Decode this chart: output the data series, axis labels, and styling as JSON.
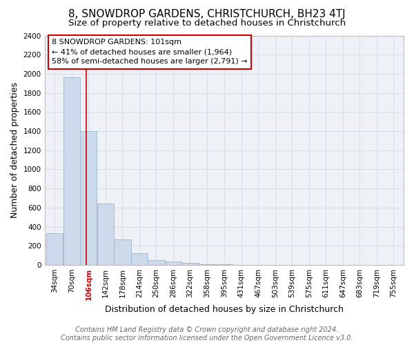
{
  "title": "8, SNOWDROP GARDENS, CHRISTCHURCH, BH23 4TJ",
  "subtitle": "Size of property relative to detached houses in Christchurch",
  "xlabel": "Distribution of detached houses by size in Christchurch",
  "ylabel": "Number of detached properties",
  "footer_line1": "Contains HM Land Registry data © Crown copyright and database right 2024.",
  "footer_line2": "Contains public sector information licensed under the Open Government Licence v3.0.",
  "annotation_line1": "8 SNOWDROP GARDENS: 101sqm",
  "annotation_line2": "← 41% of detached houses are smaller (1,964)",
  "annotation_line3": "58% of semi-detached houses are larger (2,791) →",
  "bar_color": "#ccdaeb",
  "bar_edge_color": "#9ab5cc",
  "grid_color": "#d5dde8",
  "bg_color": "#eef2f7",
  "red_line_color": "#cc0000",
  "annotation_box_color": "#cc0000",
  "bins": [
    34,
    70,
    106,
    142,
    178,
    214,
    250,
    286,
    322,
    358,
    395,
    431,
    467,
    503,
    539,
    575,
    611,
    647,
    683,
    719,
    755
  ],
  "heights": [
    330,
    1960,
    1400,
    640,
    270,
    120,
    50,
    35,
    20,
    10,
    5,
    3,
    2,
    1,
    1,
    0,
    0,
    0,
    0,
    0,
    0
  ],
  "property_size": 101,
  "ylim": [
    0,
    2400
  ],
  "yticks": [
    0,
    200,
    400,
    600,
    800,
    1000,
    1200,
    1400,
    1600,
    1800,
    2000,
    2200,
    2400
  ],
  "title_fontsize": 11,
  "subtitle_fontsize": 9.5,
  "axis_label_fontsize": 9,
  "tick_fontsize": 7.5,
  "annotation_fontsize": 8,
  "footer_fontsize": 7
}
